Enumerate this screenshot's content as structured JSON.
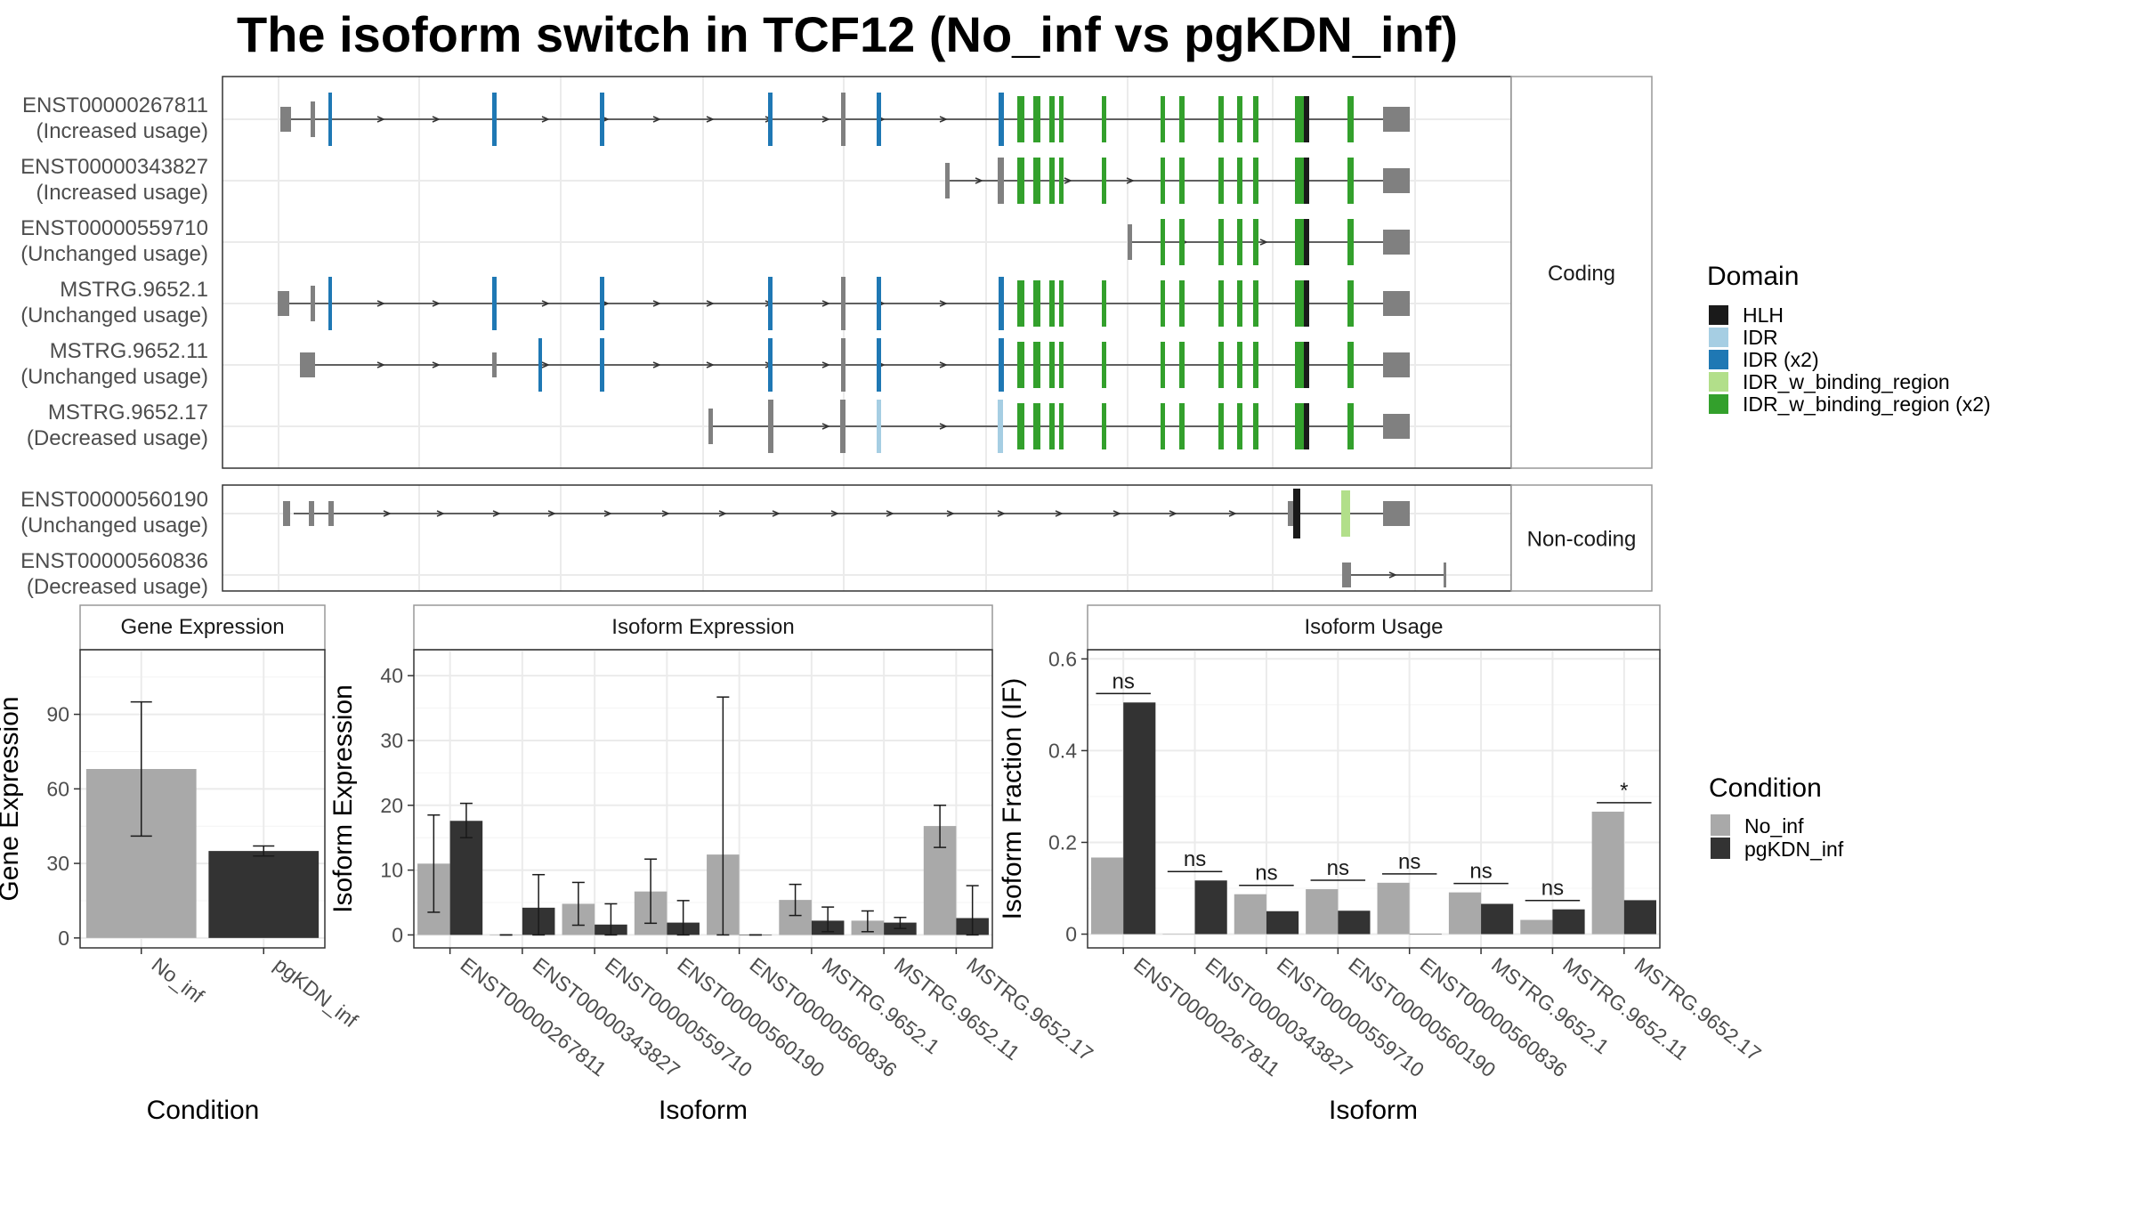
{
  "title": "The isoform switch in TCF12 (No_inf vs pgKDN_inf)",
  "colors": {
    "HLH": "#1a1a1a",
    "IDR": "#a6cee3",
    "IDR (x2)": "#1f78b4",
    "IDR_w_binding_region": "#b2df8a",
    "IDR_w_binding_region (x2)": "#33a02c",
    "exon": "#808080",
    "No_inf": "#a9a9a9",
    "pgKDN_inf": "#333333"
  },
  "domain_legend": {
    "title": "Domain",
    "items": [
      "HLH",
      "IDR",
      "IDR (x2)",
      "IDR_w_binding_region",
      "IDR_w_binding_region (x2)"
    ]
  },
  "condition_legend": {
    "title": "Condition",
    "items": [
      "No_inf",
      "pgKDN_inf"
    ]
  },
  "isoform_plot": {
    "facets": [
      "Coding",
      "Non-coding"
    ],
    "isoforms": [
      {
        "facet": "Coding",
        "id": "ENST00000267811",
        "usage": "(Increased usage)"
      },
      {
        "facet": "Coding",
        "id": "ENST00000343827",
        "usage": "(Increased usage)"
      },
      {
        "facet": "Coding",
        "id": "ENST00000559710",
        "usage": "(Unchanged usage)"
      },
      {
        "facet": "Coding",
        "id": "MSTRG.9652.1",
        "usage": "(Unchanged usage)"
      },
      {
        "facet": "Coding",
        "id": "MSTRG.9652.11",
        "usage": "(Unchanged usage)"
      },
      {
        "facet": "Coding",
        "id": "MSTRG.9652.17",
        "usage": "(Decreased usage)"
      },
      {
        "facet": "Non-coding",
        "id": "ENST00000560190",
        "usage": "(Unchanged usage)"
      },
      {
        "facet": "Non-coding",
        "id": "ENST00000560836",
        "usage": "(Decreased usage)"
      }
    ]
  },
  "chart_data": [
    {
      "type": "bar",
      "title": "Gene Expression",
      "xlabel": "Condition",
      "ylabel": "Gene Expression",
      "categories": [
        "No_inf",
        "pgKDN_inf"
      ],
      "values": [
        68,
        35
      ],
      "error_low": [
        41,
        33
      ],
      "error_high": [
        95,
        37
      ],
      "ylim": [
        -4,
        116
      ],
      "yticks": [
        0,
        30,
        60,
        90
      ]
    },
    {
      "type": "bar",
      "title": "Isoform Expression",
      "xlabel": "Isoform",
      "ylabel": "Isoform Expression",
      "categories": [
        "ENST00000267811",
        "ENST00000343827",
        "ENST00000559710",
        "ENST00000560190",
        "ENST00000560836",
        "MSTRG.9652.1",
        "MSTRG.9652.11",
        "MSTRG.9652.17"
      ],
      "series": [
        {
          "name": "No_inf",
          "values": [
            11,
            0,
            4.8,
            6.7,
            12.4,
            5.4,
            2.2,
            16.8
          ],
          "error_low": [
            3.5,
            0,
            1.5,
            1.8,
            0,
            3.0,
            0.5,
            13.5
          ],
          "error_high": [
            18.5,
            0,
            8.1,
            11.7,
            36.7,
            7.8,
            3.7,
            20.0
          ]
        },
        {
          "name": "pgKDN_inf",
          "values": [
            17.6,
            4.2,
            1.6,
            1.9,
            0,
            2.2,
            1.9,
            2.6
          ],
          "error_low": [
            15.0,
            0,
            0,
            0,
            0,
            0.5,
            1.0,
            0
          ],
          "error_high": [
            20.3,
            9.3,
            4.8,
            5.3,
            0,
            4.3,
            2.7,
            7.6
          ]
        }
      ],
      "ylim": [
        -2,
        44
      ],
      "yticks": [
        0,
        10,
        20,
        30,
        40
      ]
    },
    {
      "type": "bar",
      "title": "Isoform Usage",
      "xlabel": "Isoform",
      "ylabel": "Isoform Fraction (IF)",
      "categories": [
        "ENST00000267811",
        "ENST00000343827",
        "ENST00000559710",
        "ENST00000560190",
        "ENST00000560836",
        "MSTRG.9652.1",
        "MSTRG.9652.11",
        "MSTRG.9652.17"
      ],
      "series": [
        {
          "name": "No_inf",
          "values": [
            0.167,
            0,
            0.087,
            0.098,
            0.112,
            0.091,
            0.031,
            0.267
          ]
        },
        {
          "name": "pgKDN_inf",
          "values": [
            0.505,
            0.117,
            0.05,
            0.051,
            0,
            0.066,
            0.054,
            0.074
          ]
        }
      ],
      "significance": [
        "ns",
        "ns",
        "ns",
        "ns",
        "ns",
        "ns",
        "ns",
        "*"
      ],
      "ylim": [
        -0.03,
        0.62
      ],
      "yticks": [
        0.0,
        0.2,
        0.4,
        0.6
      ]
    }
  ]
}
